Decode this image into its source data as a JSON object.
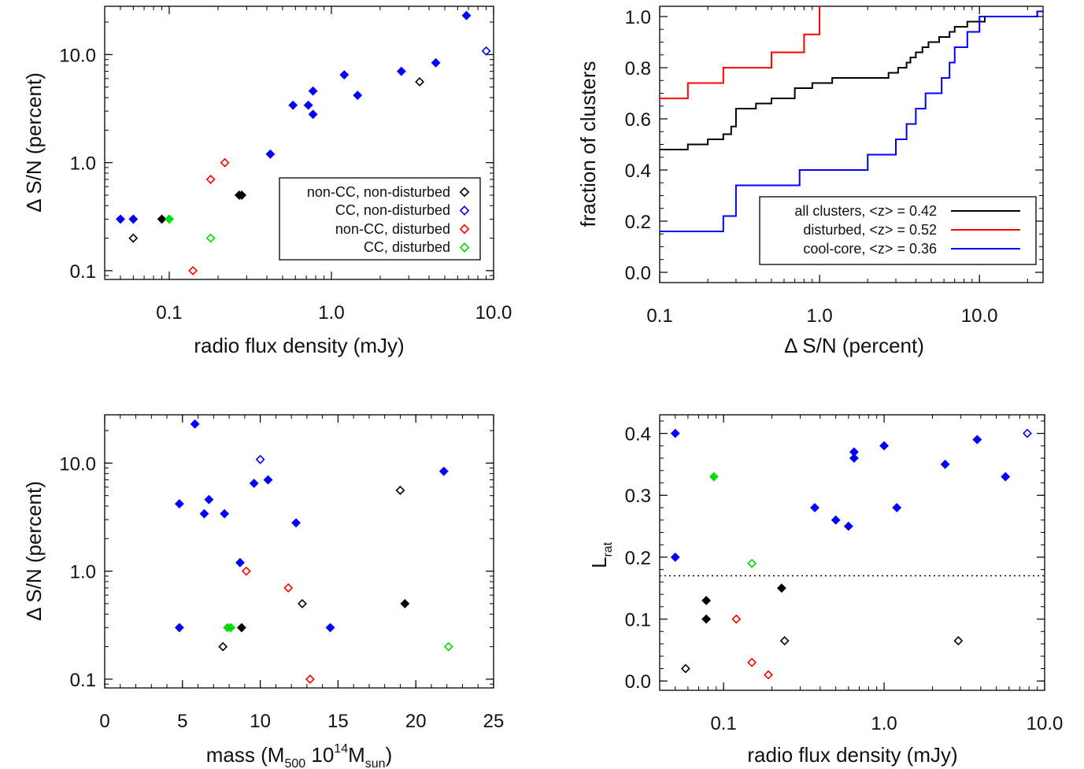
{
  "chart_data": [
    {
      "id": "p1",
      "type": "scatter",
      "xscale": "log",
      "yscale": "log",
      "xlim": [
        0.04,
        10.0
      ],
      "ylim": [
        0.083,
        28.0
      ],
      "xticks": [
        {
          "v": 0.1,
          "label": "0.1"
        },
        {
          "v": 1.0,
          "label": "1.0"
        },
        {
          "v": 10.0,
          "label": "10.0"
        }
      ],
      "yticks": [
        {
          "v": 0.1,
          "label": "0.1"
        },
        {
          "v": 1.0,
          "label": "1.0"
        },
        {
          "v": 10.0,
          "label": "10.0"
        }
      ],
      "xlabel": "radio flux density (mJy)",
      "ylabel": "Δ S/N (percent)",
      "legend": {
        "position": "lower-right",
        "entries": [
          {
            "label": "non-CC, non-disturbed",
            "color": "#000000"
          },
          {
            "label": "CC, non-disturbed",
            "color": "#0000ff"
          },
          {
            "label": "non-CC, disturbed",
            "color": "#ff0000"
          },
          {
            "label": "CC, disturbed",
            "color": "#00dd00"
          }
        ]
      },
      "points": [
        {
          "x": 0.05,
          "y": 0.3,
          "color": "#0000ff",
          "filled": true
        },
        {
          "x": 0.06,
          "y": 0.3,
          "color": "#0000ff",
          "filled": true
        },
        {
          "x": 0.06,
          "y": 0.2,
          "color": "#000000",
          "filled": false
        },
        {
          "x": 0.09,
          "y": 0.3,
          "color": "#000000",
          "filled": true
        },
        {
          "x": 0.1,
          "y": 0.3,
          "color": "#00dd00",
          "filled": true
        },
        {
          "x": 0.14,
          "y": 0.1,
          "color": "#ff0000",
          "filled": false
        },
        {
          "x": 0.18,
          "y": 0.7,
          "color": "#ff0000",
          "filled": false
        },
        {
          "x": 0.18,
          "y": 0.2,
          "color": "#00dd00",
          "filled": false
        },
        {
          "x": 0.22,
          "y": 1.0,
          "color": "#ff0000",
          "filled": false
        },
        {
          "x": 0.27,
          "y": 0.5,
          "color": "#000000",
          "filled": true
        },
        {
          "x": 0.28,
          "y": 0.5,
          "color": "#000000",
          "filled": true
        },
        {
          "x": 0.42,
          "y": 1.2,
          "color": "#0000ff",
          "filled": true
        },
        {
          "x": 0.58,
          "y": 3.4,
          "color": "#0000ff",
          "filled": true
        },
        {
          "x": 0.72,
          "y": 3.4,
          "color": "#0000ff",
          "filled": true
        },
        {
          "x": 0.77,
          "y": 4.6,
          "color": "#0000ff",
          "filled": true
        },
        {
          "x": 0.77,
          "y": 2.8,
          "color": "#0000ff",
          "filled": true
        },
        {
          "x": 1.2,
          "y": 6.5,
          "color": "#0000ff",
          "filled": true
        },
        {
          "x": 1.45,
          "y": 4.2,
          "color": "#0000ff",
          "filled": true
        },
        {
          "x": 2.7,
          "y": 7.0,
          "color": "#0000ff",
          "filled": true
        },
        {
          "x": 3.5,
          "y": 5.6,
          "color": "#000000",
          "filled": false
        },
        {
          "x": 4.4,
          "y": 8.4,
          "color": "#0000ff",
          "filled": true
        },
        {
          "x": 6.8,
          "y": 23.0,
          "color": "#0000ff",
          "filled": true
        },
        {
          "x": 9.0,
          "y": 10.8,
          "color": "#0000ff",
          "filled": false
        }
      ]
    },
    {
      "id": "p2",
      "type": "line",
      "xscale": "log",
      "yscale": "linear",
      "xlim": [
        0.1,
        25.0
      ],
      "ylim": [
        -0.04,
        1.04
      ],
      "xticks": [
        {
          "v": 0.1,
          "label": "0.1"
        },
        {
          "v": 1.0,
          "label": "1.0"
        },
        {
          "v": 10.0,
          "label": "10.0"
        }
      ],
      "yticks": [
        {
          "v": 0.0,
          "label": "0.0"
        },
        {
          "v": 0.2,
          "label": "0.2"
        },
        {
          "v": 0.4,
          "label": "0.4"
        },
        {
          "v": 0.6,
          "label": "0.6"
        },
        {
          "v": 0.8,
          "label": "0.8"
        },
        {
          "v": 1.0,
          "label": "1.0"
        }
      ],
      "xlabel": "Δ S/N (percent)",
      "ylabel": "fraction of clusters",
      "legend": {
        "position": "lower-right",
        "entries": [
          {
            "label": "all clusters, <z> = 0.42",
            "color": "#000000"
          },
          {
            "label": "disturbed, <z> = 0.52",
            "color": "#ff0000"
          },
          {
            "label": "cool-core, <z> = 0.36",
            "color": "#0000ff"
          }
        ]
      },
      "series": [
        {
          "name": "all clusters, <z> = 0.42",
          "color": "#000000",
          "steps": [
            [
              0.1,
              0.48
            ],
            [
              0.15,
              0.5
            ],
            [
              0.2,
              0.52
            ],
            [
              0.25,
              0.54
            ],
            [
              0.28,
              0.57
            ],
            [
              0.3,
              0.64
            ],
            [
              0.4,
              0.66
            ],
            [
              0.5,
              0.68
            ],
            [
              0.7,
              0.72
            ],
            [
              0.9,
              0.74
            ],
            [
              1.2,
              0.76
            ],
            [
              1.45,
              0.76
            ],
            [
              2.7,
              0.78
            ],
            [
              3.1,
              0.8
            ],
            [
              3.5,
              0.82
            ],
            [
              3.7,
              0.84
            ],
            [
              4.0,
              0.86
            ],
            [
              4.4,
              0.88
            ],
            [
              4.8,
              0.9
            ],
            [
              5.6,
              0.92
            ],
            [
              6.5,
              0.94
            ],
            [
              7.0,
              0.96
            ],
            [
              8.4,
              0.98
            ],
            [
              10.8,
              1.0
            ],
            [
              23.0,
              1.02
            ]
          ],
          "end": 25.0
        },
        {
          "name": "disturbed, <z> = 0.52",
          "color": "#ff0000",
          "steps": [
            [
              0.1,
              0.68
            ],
            [
              0.15,
              0.74
            ],
            [
              0.25,
              0.8
            ],
            [
              0.5,
              0.86
            ],
            [
              0.8,
              0.93
            ],
            [
              1.0,
              1.04
            ]
          ],
          "end": 1.0
        },
        {
          "name": "cool-core, <z> = 0.36",
          "color": "#0000ff",
          "steps": [
            [
              0.1,
              0.16
            ],
            [
              0.25,
              0.22
            ],
            [
              0.3,
              0.34
            ],
            [
              0.75,
              0.4
            ],
            [
              2.0,
              0.46
            ],
            [
              3.0,
              0.52
            ],
            [
              3.5,
              0.58
            ],
            [
              4.0,
              0.64
            ],
            [
              4.6,
              0.7
            ],
            [
              5.8,
              0.76
            ],
            [
              6.5,
              0.82
            ],
            [
              7.0,
              0.88
            ],
            [
              8.4,
              0.94
            ],
            [
              10.0,
              1.0
            ],
            [
              23.0,
              1.02
            ]
          ],
          "end": 25.0
        }
      ]
    },
    {
      "id": "p3",
      "type": "scatter",
      "xscale": "linear",
      "yscale": "log",
      "xlim": [
        0,
        25
      ],
      "ylim": [
        0.083,
        28.0
      ],
      "xticks": [
        {
          "v": 0,
          "label": "0"
        },
        {
          "v": 5,
          "label": "5"
        },
        {
          "v": 10,
          "label": "10"
        },
        {
          "v": 15,
          "label": "15"
        },
        {
          "v": 20,
          "label": "20"
        },
        {
          "v": 25,
          "label": "25"
        }
      ],
      "yticks": [
        {
          "v": 0.1,
          "label": "0.1"
        },
        {
          "v": 1.0,
          "label": "1.0"
        },
        {
          "v": 10.0,
          "label": "10.0"
        }
      ],
      "xlabel": {
        "pre": "mass (M",
        "sub1": "500",
        "mid": " 10",
        "sup": "14",
        "mid2": "M",
        "sub2": "sun",
        "post": ")"
      },
      "ylabel": "Δ S/N (percent)",
      "points": [
        {
          "x": 4.8,
          "y": 4.2,
          "color": "#0000ff",
          "filled": true
        },
        {
          "x": 4.8,
          "y": 0.3,
          "color": "#0000ff",
          "filled": true
        },
        {
          "x": 5.8,
          "y": 23.0,
          "color": "#0000ff",
          "filled": true
        },
        {
          "x": 6.4,
          "y": 3.4,
          "color": "#0000ff",
          "filled": true
        },
        {
          "x": 6.7,
          "y": 4.6,
          "color": "#0000ff",
          "filled": true
        },
        {
          "x": 7.7,
          "y": 3.4,
          "color": "#0000ff",
          "filled": true
        },
        {
          "x": 7.6,
          "y": 0.2,
          "color": "#000000",
          "filled": false
        },
        {
          "x": 7.9,
          "y": 0.3,
          "color": "#00dd00",
          "filled": true
        },
        {
          "x": 8.1,
          "y": 0.3,
          "color": "#00dd00",
          "filled": true
        },
        {
          "x": 8.8,
          "y": 0.3,
          "color": "#000000",
          "filled": true
        },
        {
          "x": 8.7,
          "y": 1.2,
          "color": "#0000ff",
          "filled": true
        },
        {
          "x": 9.1,
          "y": 1.0,
          "color": "#ff0000",
          "filled": false
        },
        {
          "x": 9.6,
          "y": 6.5,
          "color": "#0000ff",
          "filled": true
        },
        {
          "x": 10.0,
          "y": 10.8,
          "color": "#0000ff",
          "filled": false
        },
        {
          "x": 10.5,
          "y": 7.0,
          "color": "#0000ff",
          "filled": true
        },
        {
          "x": 11.8,
          "y": 0.7,
          "color": "#ff0000",
          "filled": false
        },
        {
          "x": 12.3,
          "y": 2.8,
          "color": "#0000ff",
          "filled": true
        },
        {
          "x": 12.7,
          "y": 0.5,
          "color": "#000000",
          "filled": false
        },
        {
          "x": 13.2,
          "y": 0.1,
          "color": "#ff0000",
          "filled": false
        },
        {
          "x": 14.5,
          "y": 0.3,
          "color": "#0000ff",
          "filled": true
        },
        {
          "x": 19.0,
          "y": 5.6,
          "color": "#000000",
          "filled": false
        },
        {
          "x": 19.3,
          "y": 0.5,
          "color": "#000000",
          "filled": true
        },
        {
          "x": 21.8,
          "y": 8.4,
          "color": "#0000ff",
          "filled": true
        },
        {
          "x": 22.1,
          "y": 0.2,
          "color": "#00dd00",
          "filled": false
        }
      ]
    },
    {
      "id": "p4",
      "type": "scatter",
      "xscale": "log",
      "yscale": "linear",
      "xlim": [
        0.04,
        10.0
      ],
      "ylim": [
        -0.015,
        0.43
      ],
      "xticks": [
        {
          "v": 0.1,
          "label": "0.1"
        },
        {
          "v": 1.0,
          "label": "1.0"
        },
        {
          "v": 10.0,
          "label": "10.0"
        }
      ],
      "yticks": [
        {
          "v": 0.0,
          "label": "0.0"
        },
        {
          "v": 0.1,
          "label": "0.1"
        },
        {
          "v": 0.2,
          "label": "0.2"
        },
        {
          "v": 0.3,
          "label": "0.3"
        },
        {
          "v": 0.4,
          "label": "0.4"
        }
      ],
      "xlabel": "radio flux density (mJy)",
      "ylabel": {
        "main": "L",
        "sub": "rat"
      },
      "threshold": 0.17,
      "points": [
        {
          "x": 0.05,
          "y": 0.4,
          "color": "#0000ff",
          "filled": true
        },
        {
          "x": 0.05,
          "y": 0.2,
          "color": "#0000ff",
          "filled": true
        },
        {
          "x": 0.058,
          "y": 0.02,
          "color": "#000000",
          "filled": false
        },
        {
          "x": 0.078,
          "y": 0.13,
          "color": "#000000",
          "filled": true
        },
        {
          "x": 0.078,
          "y": 0.1,
          "color": "#000000",
          "filled": true
        },
        {
          "x": 0.087,
          "y": 0.33,
          "color": "#00dd00",
          "filled": true
        },
        {
          "x": 0.12,
          "y": 0.1,
          "color": "#ff0000",
          "filled": false
        },
        {
          "x": 0.15,
          "y": 0.19,
          "color": "#00dd00",
          "filled": false
        },
        {
          "x": 0.15,
          "y": 0.03,
          "color": "#ff0000",
          "filled": false
        },
        {
          "x": 0.19,
          "y": 0.01,
          "color": "#ff0000",
          "filled": false
        },
        {
          "x": 0.23,
          "y": 0.15,
          "color": "#000000",
          "filled": true
        },
        {
          "x": 0.24,
          "y": 0.065,
          "color": "#000000",
          "filled": false
        },
        {
          "x": 0.37,
          "y": 0.28,
          "color": "#0000ff",
          "filled": true
        },
        {
          "x": 0.5,
          "y": 0.26,
          "color": "#0000ff",
          "filled": true
        },
        {
          "x": 0.6,
          "y": 0.25,
          "color": "#0000ff",
          "filled": true
        },
        {
          "x": 0.65,
          "y": 0.37,
          "color": "#0000ff",
          "filled": true
        },
        {
          "x": 0.65,
          "y": 0.36,
          "color": "#0000ff",
          "filled": true
        },
        {
          "x": 1.0,
          "y": 0.38,
          "color": "#0000ff",
          "filled": true
        },
        {
          "x": 1.2,
          "y": 0.28,
          "color": "#0000ff",
          "filled": true
        },
        {
          "x": 2.4,
          "y": 0.35,
          "color": "#0000ff",
          "filled": true
        },
        {
          "x": 2.9,
          "y": 0.065,
          "color": "#000000",
          "filled": false
        },
        {
          "x": 3.8,
          "y": 0.39,
          "color": "#0000ff",
          "filled": true
        },
        {
          "x": 5.7,
          "y": 0.33,
          "color": "#0000ff",
          "filled": true
        },
        {
          "x": 7.8,
          "y": 0.4,
          "color": "#0000ff",
          "filled": false
        }
      ]
    }
  ]
}
